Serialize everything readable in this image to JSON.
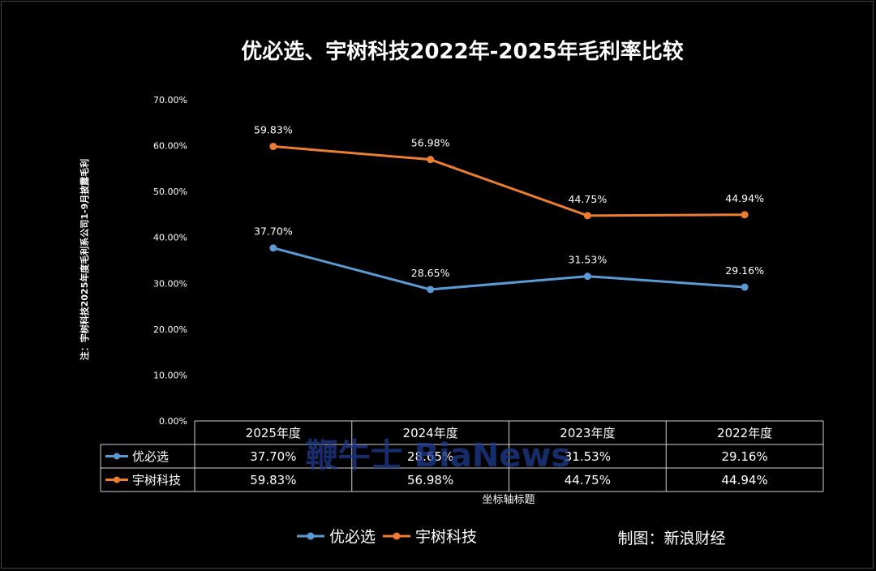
{
  "chart_data": {
    "type": "line",
    "title": "优必选、宇树科技2022年-2025年毛利率比较",
    "ylabel": "注：宇树科技2025年度毛利系公司1-9月披露毛利",
    "xlabel": "坐标轴标题",
    "categories": [
      "2025年度",
      "2024年度",
      "2023年度",
      "2022年度"
    ],
    "y_ticks": [
      "0.00%",
      "10.00%",
      "20.00%",
      "30.00%",
      "40.00%",
      "50.00%",
      "60.00%",
      "70.00%"
    ],
    "ylim": [
      0,
      70
    ],
    "grid": false,
    "legend_position": "bottom",
    "data_table": true,
    "series": [
      {
        "name": "优必选",
        "values": [
          37.7,
          28.65,
          31.53,
          29.16
        ],
        "labels": [
          "37.70%",
          "28.65%",
          "31.53%",
          "29.16%"
        ],
        "color": "#5b9bd5"
      },
      {
        "name": "宇树科技",
        "values": [
          59.83,
          56.98,
          44.75,
          44.94
        ],
        "labels": [
          "59.83%",
          "56.98%",
          "44.75%",
          "44.94%"
        ],
        "color": "#ed7d31"
      }
    ],
    "credit": "制图：新浪财经",
    "watermark": "鞭牛士 BiaNews"
  }
}
